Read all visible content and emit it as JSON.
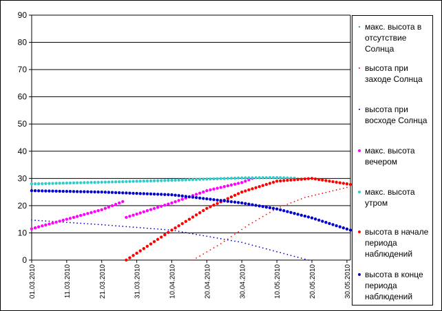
{
  "chart_data": {
    "type": "scatter",
    "title": "",
    "xlabel": "",
    "ylabel": "",
    "ylim": [
      0,
      90
    ],
    "yticks": [
      "0",
      "10",
      "20",
      "30",
      "40",
      "50",
      "60",
      "70",
      "80",
      "90"
    ],
    "xticks": [
      "01.03.2010",
      "11.03.2010",
      "21.03.2010",
      "31.03.2010",
      "10.04.2010",
      "20.04.2010",
      "30.04.2010",
      "10.05.2010",
      "20.05.2010",
      "30.05.2010"
    ],
    "xlim": [
      "2010-03-01",
      "2010-05-31"
    ],
    "grid": "horizontal",
    "legend_position": "right",
    "series": [
      {
        "name": "макс. высота в отсутствие Солнца",
        "color": "#008080",
        "marker": "small",
        "points": [
          [
            "2010-03-01",
            28.0
          ],
          [
            "2010-03-21",
            28.6
          ],
          [
            "2010-04-10",
            29.3
          ],
          [
            "2010-04-30",
            30.2
          ],
          [
            "2010-05-10",
            30.3
          ],
          [
            "2010-05-20",
            30.0
          ]
        ]
      },
      {
        "name": "высота при заходе Солнца",
        "color": "#ff0000",
        "marker": "small",
        "points": [
          [
            "2010-04-16",
            0.0
          ],
          [
            "2010-04-24",
            6.0
          ],
          [
            "2010-05-02",
            13.0
          ],
          [
            "2010-05-10",
            19.0
          ],
          [
            "2010-05-18",
            23.0
          ],
          [
            "2010-05-31",
            27.0
          ]
        ]
      },
      {
        "name": "высота при восходе Солнца",
        "color": "#0000cc",
        "marker": "small",
        "points": [
          [
            "2010-03-01",
            14.7
          ],
          [
            "2010-03-21",
            13.0
          ],
          [
            "2010-04-10",
            11.0
          ],
          [
            "2010-04-30",
            6.5
          ],
          [
            "2010-05-19",
            0.0
          ]
        ]
      },
      {
        "name": "макс. высота вечером",
        "color": "#ff00ff",
        "marker": "large",
        "segments": [
          [
            [
              "2010-03-01",
              11.5
            ],
            [
              "2010-03-21",
              18.5
            ],
            [
              "2010-03-27",
              21.5
            ]
          ],
          [
            [
              "2010-03-28",
              15.7
            ],
            [
              "2010-04-10",
              21.0
            ],
            [
              "2010-04-20",
              25.5
            ],
            [
              "2010-04-30",
              28.5
            ],
            [
              "2010-05-03",
              30.0
            ]
          ]
        ]
      },
      {
        "name": "макс. высота утром",
        "color": "#33cccc",
        "marker": "large",
        "points": [
          [
            "2010-03-01",
            28.0
          ],
          [
            "2010-03-21",
            28.6
          ],
          [
            "2010-04-10",
            29.3
          ],
          [
            "2010-04-30",
            30.2
          ],
          [
            "2010-05-10",
            30.3
          ],
          [
            "2010-05-15",
            30.1
          ]
        ]
      },
      {
        "name": "высота в начале периода наблюдений",
        "color": "#ff0000",
        "marker": "large",
        "points": [
          [
            "2010-03-28",
            0.0
          ],
          [
            "2010-04-10",
            11.0
          ],
          [
            "2010-04-20",
            19.0
          ],
          [
            "2010-04-30",
            25.0
          ],
          [
            "2010-05-10",
            29.0
          ],
          [
            "2010-05-20",
            30.0
          ],
          [
            "2010-05-31",
            27.8
          ]
        ]
      },
      {
        "name": "высота в конце периода наблюдений",
        "color": "#0000cc",
        "marker": "large",
        "points": [
          [
            "2010-03-01",
            25.5
          ],
          [
            "2010-03-21",
            25.0
          ],
          [
            "2010-04-10",
            24.0
          ],
          [
            "2010-04-30",
            21.0
          ],
          [
            "2010-05-10",
            18.8
          ],
          [
            "2010-05-20",
            15.5
          ],
          [
            "2010-05-31",
            11.0
          ]
        ]
      }
    ]
  }
}
